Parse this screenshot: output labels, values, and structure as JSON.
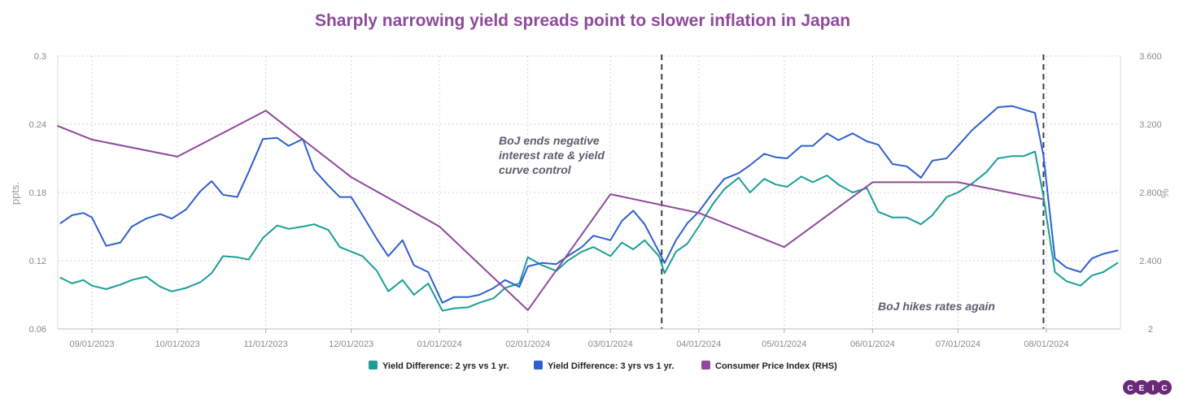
{
  "chart_data": {
    "type": "line",
    "title": "Sharply narrowing yield spreads point to slower inflation in Japan",
    "ylabel": "ppts.",
    "y2label": "%",
    "ylim": [
      0.06,
      0.3
    ],
    "y2lim": [
      2.0,
      3.6
    ],
    "yticks": [
      "0.3",
      "0.24",
      "0.18",
      "0.12",
      "0.06"
    ],
    "y2ticks": [
      "3.600",
      "3.200",
      "2.800",
      "2.400",
      "2"
    ],
    "x_range": [
      "2023-08-20",
      "2024-08-27"
    ],
    "xticks": [
      {
        "date": "2023-09-01",
        "label": "09/01/2023"
      },
      {
        "date": "2023-10-01",
        "label": "10/01/2023"
      },
      {
        "date": "2023-11-01",
        "label": "11/01/2023"
      },
      {
        "date": "2023-12-01",
        "label": "12/01/2023"
      },
      {
        "date": "2024-01-01",
        "label": "01/01/2024"
      },
      {
        "date": "2024-02-01",
        "label": "02/01/2024"
      },
      {
        "date": "2024-03-01",
        "label": "03/01/2024"
      },
      {
        "date": "2024-04-01",
        "label": "04/01/2024"
      },
      {
        "date": "2024-05-01",
        "label": "05/01/2024"
      },
      {
        "date": "2024-06-01",
        "label": "06/01/2024"
      },
      {
        "date": "2024-07-01",
        "label": "07/01/2024"
      },
      {
        "date": "2024-08-01",
        "label": "08/01/2024"
      }
    ],
    "grid": true,
    "legend_position": "bottom-center",
    "annotations": [
      {
        "lines": [
          "BoJ ends negative",
          "interest rate & yield",
          "curve control"
        ],
        "date": "2024-03-19"
      },
      {
        "lines": [
          "BoJ hikes rates again"
        ],
        "date": "2024-07-31"
      }
    ],
    "events": [
      {
        "date": "2024-03-19"
      },
      {
        "date": "2024-07-31"
      }
    ],
    "series": [
      {
        "name": "Yield Difference: 2 yrs vs 1 yr.",
        "axis": "left",
        "color": "#1b9e96",
        "points": [
          [
            "2023-08-21",
            0.105
          ],
          [
            "2023-08-25",
            0.1
          ],
          [
            "2023-08-29",
            0.103
          ],
          [
            "2023-09-01",
            0.098
          ],
          [
            "2023-09-06",
            0.095
          ],
          [
            "2023-09-11",
            0.099
          ],
          [
            "2023-09-15",
            0.103
          ],
          [
            "2023-09-20",
            0.106
          ],
          [
            "2023-09-25",
            0.097
          ],
          [
            "2023-09-29",
            0.093
          ],
          [
            "2023-10-04",
            0.096
          ],
          [
            "2023-10-09",
            0.101
          ],
          [
            "2023-10-13",
            0.109
          ],
          [
            "2023-10-17",
            0.124
          ],
          [
            "2023-10-22",
            0.123
          ],
          [
            "2023-10-26",
            0.121
          ],
          [
            "2023-10-31",
            0.14
          ],
          [
            "2023-11-05",
            0.151
          ],
          [
            "2023-11-09",
            0.148
          ],
          [
            "2023-11-14",
            0.15
          ],
          [
            "2023-11-18",
            0.152
          ],
          [
            "2023-11-23",
            0.147
          ],
          [
            "2023-11-27",
            0.132
          ],
          [
            "2023-12-01",
            0.128
          ],
          [
            "2023-12-05",
            0.124
          ],
          [
            "2023-12-10",
            0.111
          ],
          [
            "2023-12-14",
            0.093
          ],
          [
            "2023-12-19",
            0.103
          ],
          [
            "2023-12-23",
            0.09
          ],
          [
            "2023-12-28",
            0.1
          ],
          [
            "2024-01-02",
            0.076
          ],
          [
            "2024-01-06",
            0.078
          ],
          [
            "2024-01-11",
            0.079
          ],
          [
            "2024-01-15",
            0.083
          ],
          [
            "2024-01-20",
            0.087
          ],
          [
            "2024-01-24",
            0.096
          ],
          [
            "2024-01-29",
            0.1
          ],
          [
            "2024-02-01",
            0.123
          ],
          [
            "2024-02-06",
            0.116
          ],
          [
            "2024-02-11",
            0.111
          ],
          [
            "2024-02-15",
            0.12
          ],
          [
            "2024-02-20",
            0.128
          ],
          [
            "2024-02-24",
            0.132
          ],
          [
            "2024-03-01",
            0.124
          ],
          [
            "2024-03-05",
            0.136
          ],
          [
            "2024-03-09",
            0.13
          ],
          [
            "2024-03-13",
            0.138
          ],
          [
            "2024-03-18",
            0.124
          ],
          [
            "2024-03-20",
            0.109
          ],
          [
            "2024-03-24",
            0.128
          ],
          [
            "2024-03-28",
            0.135
          ],
          [
            "2024-04-01",
            0.15
          ],
          [
            "2024-04-06",
            0.17
          ],
          [
            "2024-04-10",
            0.183
          ],
          [
            "2024-04-15",
            0.193
          ],
          [
            "2024-04-19",
            0.18
          ],
          [
            "2024-04-24",
            0.192
          ],
          [
            "2024-04-28",
            0.187
          ],
          [
            "2024-05-02",
            0.185
          ],
          [
            "2024-05-07",
            0.194
          ],
          [
            "2024-05-11",
            0.189
          ],
          [
            "2024-05-16",
            0.195
          ],
          [
            "2024-05-20",
            0.187
          ],
          [
            "2024-05-25",
            0.18
          ],
          [
            "2024-05-30",
            0.184
          ],
          [
            "2024-06-03",
            0.163
          ],
          [
            "2024-06-08",
            0.158
          ],
          [
            "2024-06-13",
            0.158
          ],
          [
            "2024-06-18",
            0.152
          ],
          [
            "2024-06-22",
            0.16
          ],
          [
            "2024-06-27",
            0.176
          ],
          [
            "2024-07-01",
            0.18
          ],
          [
            "2024-07-06",
            0.188
          ],
          [
            "2024-07-11",
            0.198
          ],
          [
            "2024-07-15",
            0.21
          ],
          [
            "2024-07-20",
            0.212
          ],
          [
            "2024-07-24",
            0.212
          ],
          [
            "2024-07-28",
            0.216
          ],
          [
            "2024-07-31",
            0.176
          ],
          [
            "2024-08-04",
            0.11
          ],
          [
            "2024-08-08",
            0.102
          ],
          [
            "2024-08-13",
            0.098
          ],
          [
            "2024-08-17",
            0.107
          ],
          [
            "2024-08-21",
            0.11
          ],
          [
            "2024-08-26",
            0.118
          ]
        ]
      },
      {
        "name": "Yield Difference: 3 yrs vs 1 yr.",
        "axis": "left",
        "color": "#2f5fce",
        "points": [
          [
            "2023-08-21",
            0.153
          ],
          [
            "2023-08-25",
            0.16
          ],
          [
            "2023-08-29",
            0.162
          ],
          [
            "2023-09-01",
            0.158
          ],
          [
            "2023-09-06",
            0.133
          ],
          [
            "2023-09-11",
            0.136
          ],
          [
            "2023-09-15",
            0.15
          ],
          [
            "2023-09-20",
            0.157
          ],
          [
            "2023-09-25",
            0.161
          ],
          [
            "2023-09-29",
            0.157
          ],
          [
            "2023-10-04",
            0.165
          ],
          [
            "2023-10-09",
            0.181
          ],
          [
            "2023-10-13",
            0.19
          ],
          [
            "2023-10-17",
            0.178
          ],
          [
            "2023-10-22",
            0.176
          ],
          [
            "2023-10-26",
            0.198
          ],
          [
            "2023-10-31",
            0.227
          ],
          [
            "2023-11-05",
            0.228
          ],
          [
            "2023-11-09",
            0.221
          ],
          [
            "2023-11-14",
            0.227
          ],
          [
            "2023-11-18",
            0.2
          ],
          [
            "2023-11-23",
            0.186
          ],
          [
            "2023-11-27",
            0.176
          ],
          [
            "2023-12-01",
            0.176
          ],
          [
            "2023-12-05",
            0.16
          ],
          [
            "2023-12-10",
            0.139
          ],
          [
            "2023-12-14",
            0.124
          ],
          [
            "2023-12-19",
            0.138
          ],
          [
            "2023-12-23",
            0.116
          ],
          [
            "2023-12-28",
            0.11
          ],
          [
            "2024-01-02",
            0.083
          ],
          [
            "2024-01-06",
            0.088
          ],
          [
            "2024-01-11",
            0.088
          ],
          [
            "2024-01-15",
            0.09
          ],
          [
            "2024-01-20",
            0.096
          ],
          [
            "2024-01-24",
            0.103
          ],
          [
            "2024-01-29",
            0.097
          ],
          [
            "2024-02-01",
            0.115
          ],
          [
            "2024-02-06",
            0.118
          ],
          [
            "2024-02-11",
            0.117
          ],
          [
            "2024-02-15",
            0.124
          ],
          [
            "2024-02-20",
            0.132
          ],
          [
            "2024-02-24",
            0.142
          ],
          [
            "2024-03-01",
            0.138
          ],
          [
            "2024-03-05",
            0.155
          ],
          [
            "2024-03-09",
            0.164
          ],
          [
            "2024-03-13",
            0.152
          ],
          [
            "2024-03-18",
            0.128
          ],
          [
            "2024-03-20",
            0.118
          ],
          [
            "2024-03-24",
            0.138
          ],
          [
            "2024-03-28",
            0.153
          ],
          [
            "2024-04-01",
            0.163
          ],
          [
            "2024-04-06",
            0.18
          ],
          [
            "2024-04-10",
            0.192
          ],
          [
            "2024-04-15",
            0.197
          ],
          [
            "2024-04-19",
            0.204
          ],
          [
            "2024-04-24",
            0.214
          ],
          [
            "2024-04-28",
            0.211
          ],
          [
            "2024-05-02",
            0.21
          ],
          [
            "2024-05-07",
            0.221
          ],
          [
            "2024-05-11",
            0.221
          ],
          [
            "2024-05-16",
            0.232
          ],
          [
            "2024-05-20",
            0.226
          ],
          [
            "2024-05-25",
            0.232
          ],
          [
            "2024-05-30",
            0.225
          ],
          [
            "2024-06-03",
            0.222
          ],
          [
            "2024-06-08",
            0.205
          ],
          [
            "2024-06-13",
            0.203
          ],
          [
            "2024-06-18",
            0.193
          ],
          [
            "2024-06-22",
            0.208
          ],
          [
            "2024-06-27",
            0.21
          ],
          [
            "2024-07-01",
            0.221
          ],
          [
            "2024-07-06",
            0.235
          ],
          [
            "2024-07-11",
            0.246
          ],
          [
            "2024-07-15",
            0.255
          ],
          [
            "2024-07-20",
            0.256
          ],
          [
            "2024-07-24",
            0.253
          ],
          [
            "2024-07-28",
            0.25
          ],
          [
            "2024-07-31",
            0.212
          ],
          [
            "2024-08-04",
            0.122
          ],
          [
            "2024-08-08",
            0.114
          ],
          [
            "2024-08-13",
            0.11
          ],
          [
            "2024-08-17",
            0.122
          ],
          [
            "2024-08-21",
            0.126
          ],
          [
            "2024-08-26",
            0.129
          ]
        ]
      },
      {
        "name": "Consumer Price Index (RHS)",
        "axis": "right",
        "color": "#8e4a9b",
        "points": [
          [
            "2023-08-20",
            3.19
          ],
          [
            "2023-09-01",
            3.11
          ],
          [
            "2023-10-01",
            3.01
          ],
          [
            "2023-11-01",
            3.28
          ],
          [
            "2023-12-01",
            2.89
          ],
          [
            "2024-01-01",
            2.6
          ],
          [
            "2024-02-01",
            2.11
          ],
          [
            "2024-03-01",
            2.79
          ],
          [
            "2024-04-01",
            2.68
          ],
          [
            "2024-05-01",
            2.48
          ],
          [
            "2024-06-01",
            2.86
          ],
          [
            "2024-07-01",
            2.86
          ],
          [
            "2024-07-31",
            2.76
          ]
        ]
      }
    ]
  },
  "branding": {
    "logo_text": "CEIC"
  }
}
